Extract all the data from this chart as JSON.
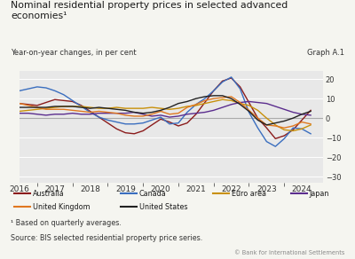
{
  "title_line1": "Nominal residential property prices in selected advanced",
  "title_line2": "economies¹",
  "subtitle_left": "Year-on-year changes, in per cent",
  "subtitle_right": "Graph A.1",
  "footnote1": "¹ Based on quarterly averages.",
  "footnote2": "Source: BIS selected residential property price series.",
  "footnote3": "© Bank for International Settlements",
  "ylim": [
    -33,
    24
  ],
  "yticks": [
    -30,
    -20,
    -10,
    0,
    10,
    20
  ],
  "bg_color": "#e8e8e8",
  "fig_color": "#f5f5f0",
  "series": {
    "Australia": {
      "color": "#8b1c1c",
      "x": [
        2016.0,
        2016.25,
        2016.5,
        2016.75,
        2017.0,
        2017.25,
        2017.5,
        2017.75,
        2018.0,
        2018.25,
        2018.5,
        2018.75,
        2019.0,
        2019.25,
        2019.5,
        2019.75,
        2020.0,
        2020.25,
        2020.5,
        2020.75,
        2021.0,
        2021.25,
        2021.5,
        2021.75,
        2022.0,
        2022.25,
        2022.5,
        2022.75,
        2023.0,
        2023.25,
        2023.5,
        2023.75,
        2024.0,
        2024.25
      ],
      "y": [
        7.5,
        7.0,
        6.5,
        8.0,
        9.5,
        9.0,
        8.5,
        6.5,
        3.5,
        0.5,
        -2.5,
        -5.5,
        -7.5,
        -8.0,
        -6.5,
        -3.5,
        -0.5,
        -2.0,
        -4.0,
        -2.5,
        2.0,
        8.0,
        14.0,
        19.0,
        20.5,
        16.0,
        8.0,
        0.0,
        -5.0,
        -10.5,
        -9.0,
        -6.0,
        -1.0,
        4.0
      ]
    },
    "Canada": {
      "color": "#3a6ebf",
      "x": [
        2016.0,
        2016.25,
        2016.5,
        2016.75,
        2017.0,
        2017.25,
        2017.5,
        2017.75,
        2018.0,
        2018.25,
        2018.5,
        2018.75,
        2019.0,
        2019.25,
        2019.5,
        2019.75,
        2020.0,
        2020.25,
        2020.5,
        2020.75,
        2021.0,
        2021.25,
        2021.5,
        2021.75,
        2022.0,
        2022.25,
        2022.5,
        2022.75,
        2023.0,
        2023.25,
        2023.5,
        2023.75,
        2024.0,
        2024.25
      ],
      "y": [
        14.0,
        15.0,
        16.0,
        15.5,
        14.0,
        12.0,
        9.0,
        6.0,
        3.0,
        0.5,
        -1.0,
        -2.0,
        -3.0,
        -3.0,
        -2.5,
        -1.0,
        0.5,
        -3.0,
        -2.5,
        3.0,
        7.0,
        10.0,
        14.0,
        18.5,
        21.0,
        15.0,
        3.0,
        -5.0,
        -12.0,
        -14.5,
        -10.5,
        -5.0,
        -5.5,
        -8.0
      ]
    },
    "Euro area": {
      "color": "#c8900a",
      "x": [
        2016.0,
        2016.25,
        2016.5,
        2016.75,
        2017.0,
        2017.25,
        2017.5,
        2017.75,
        2018.0,
        2018.25,
        2018.5,
        2018.75,
        2019.0,
        2019.25,
        2019.5,
        2019.75,
        2020.0,
        2020.25,
        2020.5,
        2020.75,
        2021.0,
        2021.25,
        2021.5,
        2021.75,
        2022.0,
        2022.25,
        2022.5,
        2022.75,
        2023.0,
        2023.25,
        2023.5,
        2023.75,
        2024.0,
        2024.25
      ],
      "y": [
        3.5,
        4.0,
        4.5,
        5.0,
        5.5,
        6.0,
        6.0,
        6.0,
        5.5,
        5.0,
        5.0,
        5.5,
        5.0,
        5.0,
        5.0,
        5.5,
        5.0,
        4.5,
        5.0,
        6.0,
        6.5,
        7.5,
        8.5,
        9.5,
        9.0,
        7.5,
        6.5,
        4.0,
        0.0,
        -3.5,
        -6.0,
        -6.5,
        -5.5,
        -3.5
      ]
    },
    "Japan": {
      "color": "#5b2d8e",
      "x": [
        2016.0,
        2016.25,
        2016.5,
        2016.75,
        2017.0,
        2017.25,
        2017.5,
        2017.75,
        2018.0,
        2018.25,
        2018.5,
        2018.75,
        2019.0,
        2019.25,
        2019.5,
        2019.75,
        2020.0,
        2020.25,
        2020.5,
        2020.75,
        2021.0,
        2021.25,
        2021.5,
        2021.75,
        2022.0,
        2022.25,
        2022.5,
        2022.75,
        2023.0,
        2023.25,
        2023.5,
        2023.75,
        2024.0,
        2024.25
      ],
      "y": [
        2.5,
        2.5,
        2.0,
        1.5,
        2.0,
        2.0,
        2.5,
        2.0,
        2.0,
        2.5,
        2.5,
        2.5,
        2.5,
        3.0,
        2.0,
        1.0,
        1.5,
        0.5,
        1.0,
        2.0,
        2.5,
        3.0,
        4.0,
        5.5,
        7.0,
        8.0,
        8.5,
        8.0,
        7.5,
        6.0,
        4.5,
        3.0,
        2.0,
        1.5
      ]
    },
    "United Kingdom": {
      "color": "#e07820",
      "x": [
        2016.0,
        2016.25,
        2016.5,
        2016.75,
        2017.0,
        2017.25,
        2017.5,
        2017.75,
        2018.0,
        2018.25,
        2018.5,
        2018.75,
        2019.0,
        2019.25,
        2019.5,
        2019.75,
        2020.0,
        2020.25,
        2020.5,
        2020.75,
        2021.0,
        2021.25,
        2021.5,
        2021.75,
        2022.0,
        2022.25,
        2022.5,
        2022.75,
        2023.0,
        2023.25,
        2023.5,
        2023.75,
        2024.0,
        2024.25
      ],
      "y": [
        7.5,
        6.5,
        5.5,
        4.5,
        4.5,
        4.5,
        4.0,
        3.5,
        3.0,
        3.5,
        3.0,
        2.5,
        1.5,
        1.0,
        1.0,
        2.0,
        3.5,
        2.0,
        2.5,
        5.5,
        7.0,
        9.0,
        10.0,
        10.5,
        11.0,
        8.0,
        4.0,
        0.0,
        -3.5,
        -4.0,
        -5.0,
        -4.0,
        -2.0,
        -3.0
      ]
    },
    "United States": {
      "color": "#222222",
      "x": [
        2016.0,
        2016.25,
        2016.5,
        2016.75,
        2017.0,
        2017.25,
        2017.5,
        2017.75,
        2018.0,
        2018.25,
        2018.5,
        2018.75,
        2019.0,
        2019.25,
        2019.5,
        2019.75,
        2020.0,
        2020.25,
        2020.5,
        2020.75,
        2021.0,
        2021.25,
        2021.5,
        2021.75,
        2022.0,
        2022.25,
        2022.5,
        2022.75,
        2023.0,
        2023.25,
        2023.5,
        2023.75,
        2024.0,
        2024.25
      ],
      "y": [
        5.5,
        5.5,
        5.5,
        5.5,
        6.0,
        6.0,
        6.0,
        5.5,
        5.0,
        5.5,
        5.0,
        4.5,
        4.0,
        3.0,
        2.5,
        3.0,
        4.0,
        5.5,
        7.5,
        8.5,
        10.0,
        11.0,
        11.5,
        11.5,
        10.0,
        7.0,
        3.5,
        -1.0,
        -3.5,
        -2.5,
        -1.5,
        0.0,
        2.0,
        3.5
      ]
    }
  },
  "legend_order": [
    "Australia",
    "Canada",
    "Euro area",
    "Japan",
    "United Kingdom",
    "United States"
  ]
}
